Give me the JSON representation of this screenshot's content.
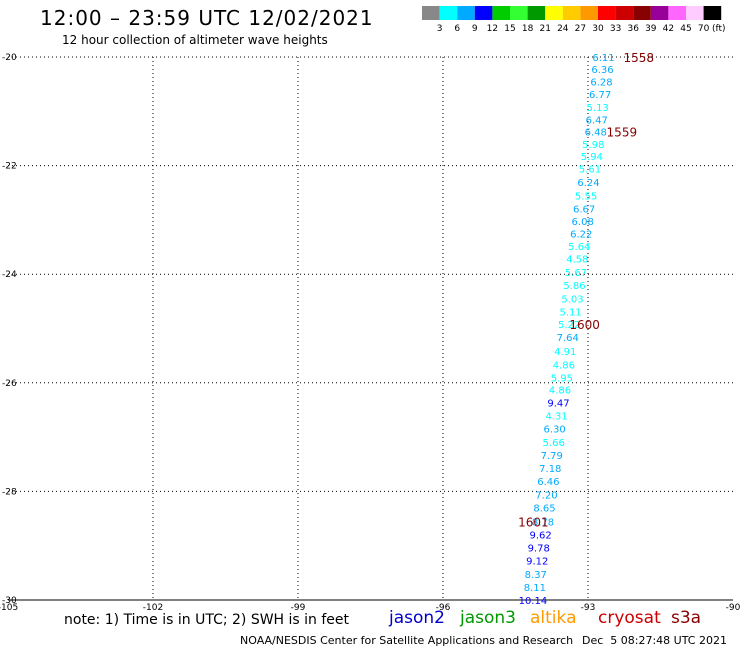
{
  "header": {
    "title": "12:00 – 23:59 UTC 12/02/2021",
    "subtitle": "12 hour collection of altimeter wave heights"
  },
  "footer": {
    "note": "note: 1) Time is in UTC; 2) SWH is in feet",
    "credit": "NOAA/NESDIS Center for Satellite Applications and Research",
    "timestamp": "Dec  5 08:27:48 UTC 2021",
    "satellites": [
      {
        "name": "jason2",
        "color": "#0000cc"
      },
      {
        "name": "jason3",
        "color": "#009900"
      },
      {
        "name": "altika",
        "color": "#ff9900"
      },
      {
        "name": "cryosat",
        "color": "#cc0000"
      },
      {
        "name": "s3a",
        "color": "#880000"
      }
    ]
  },
  "legend": {
    "bins": [
      {
        "label": "3",
        "color": "#888888"
      },
      {
        "label": "6",
        "color": "#00ffff"
      },
      {
        "label": "9",
        "color": "#00aaff"
      },
      {
        "label": "12",
        "color": "#0000ff"
      },
      {
        "label": "15",
        "color": "#00cc00"
      },
      {
        "label": "18",
        "color": "#33ff33"
      },
      {
        "label": "21",
        "color": "#009900"
      },
      {
        "label": "24",
        "color": "#ffff00"
      },
      {
        "label": "27",
        "color": "#ffcc00"
      },
      {
        "label": "30",
        "color": "#ff9900"
      },
      {
        "label": "33",
        "color": "#ff0000"
      },
      {
        "label": "36",
        "color": "#cc0000"
      },
      {
        "label": "39",
        "color": "#880000"
      },
      {
        "label": "42",
        "color": "#990099"
      },
      {
        "label": "45",
        "color": "#ff66ff"
      },
      {
        "label": "70",
        "color": "#ffccff"
      },
      {
        "label": "",
        "color": "#000000"
      }
    ],
    "unit": "(ft)"
  },
  "chart_data": {
    "type": "scatter",
    "title": "12:00 – 23:59 UTC 12/02/2021",
    "subtitle": "12 hour collection of altimeter wave heights",
    "xlim": [
      -105,
      -90
    ],
    "ylim": [
      -30,
      -20
    ],
    "xticks": [
      -105,
      -102,
      -99,
      -96,
      -93,
      -90
    ],
    "yticks": [
      -20,
      -22,
      -24,
      -26,
      -28,
      -30
    ],
    "xtick_labels": [
      "-105",
      "-102",
      "-99",
      "-96",
      "-93",
      "-90"
    ],
    "ytick_labels": [
      "-20",
      "-22",
      "-24",
      "-26",
      "-28",
      "-30"
    ],
    "grid": true,
    "points": [
      {
        "lon": -92.68,
        "lat": -20.0,
        "swh": "6.11",
        "color": "#00aaff"
      },
      {
        "lon": -92.7,
        "lat": -20.22,
        "swh": "6.36",
        "color": "#00aaff"
      },
      {
        "lon": -92.72,
        "lat": -20.45,
        "swh": "6.28",
        "color": "#00aaff"
      },
      {
        "lon": -92.75,
        "lat": -20.68,
        "swh": "6.77",
        "color": "#00aaff"
      },
      {
        "lon": -92.8,
        "lat": -20.92,
        "swh": "5.13",
        "color": "#00ffff"
      },
      {
        "lon": -92.82,
        "lat": -21.15,
        "swh": "6.47",
        "color": "#00aaff"
      },
      {
        "lon": -92.84,
        "lat": -21.37,
        "swh": "6.48",
        "color": "#00aaff"
      },
      {
        "lon": -92.89,
        "lat": -21.6,
        "swh": "5.98",
        "color": "#00ffff"
      },
      {
        "lon": -92.92,
        "lat": -21.82,
        "swh": "5.94",
        "color": "#00ffff"
      },
      {
        "lon": -92.96,
        "lat": -22.05,
        "swh": "5.61",
        "color": "#00ffff"
      },
      {
        "lon": -92.99,
        "lat": -22.3,
        "swh": "6.24",
        "color": "#00aaff"
      },
      {
        "lon": -93.04,
        "lat": -22.55,
        "swh": "5.55",
        "color": "#00ffff"
      },
      {
        "lon": -93.08,
        "lat": -22.79,
        "swh": "6.67",
        "color": "#00aaff"
      },
      {
        "lon": -93.11,
        "lat": -23.02,
        "swh": "6.08",
        "color": "#00aaff"
      },
      {
        "lon": -93.14,
        "lat": -23.25,
        "swh": "6.22",
        "color": "#00aaff"
      },
      {
        "lon": -93.18,
        "lat": -23.48,
        "swh": "5.64",
        "color": "#00ffff"
      },
      {
        "lon": -93.22,
        "lat": -23.71,
        "swh": "4.58",
        "color": "#00ffff"
      },
      {
        "lon": -93.25,
        "lat": -23.96,
        "swh": "5.67",
        "color": "#00ffff"
      },
      {
        "lon": -93.28,
        "lat": -24.2,
        "swh": "5.86",
        "color": "#00ffff"
      },
      {
        "lon": -93.32,
        "lat": -24.45,
        "swh": "5.03",
        "color": "#00ffff"
      },
      {
        "lon": -93.36,
        "lat": -24.69,
        "swh": "5.11",
        "color": "#00ffff"
      },
      {
        "lon": -93.39,
        "lat": -24.92,
        "swh": "5.22",
        "color": "#00ffff"
      },
      {
        "lon": -93.42,
        "lat": -25.16,
        "swh": "7.64",
        "color": "#00aaff"
      },
      {
        "lon": -93.47,
        "lat": -25.41,
        "swh": "4.91",
        "color": "#00ffff"
      },
      {
        "lon": -93.5,
        "lat": -25.66,
        "swh": "4.86",
        "color": "#00ffff"
      },
      {
        "lon": -93.54,
        "lat": -25.9,
        "swh": "5.95",
        "color": "#00ffff"
      },
      {
        "lon": -93.58,
        "lat": -26.12,
        "swh": "4.86",
        "color": "#00ffff"
      },
      {
        "lon": -93.61,
        "lat": -26.36,
        "swh": "9.47",
        "color": "#0000ff"
      },
      {
        "lon": -93.65,
        "lat": -26.6,
        "swh": "4.31",
        "color": "#00ffff"
      },
      {
        "lon": -93.69,
        "lat": -26.84,
        "swh": "6.30",
        "color": "#00aaff"
      },
      {
        "lon": -93.71,
        "lat": -27.09,
        "swh": "5.66",
        "color": "#00ffff"
      },
      {
        "lon": -93.75,
        "lat": -27.33,
        "swh": "7.79",
        "color": "#00aaff"
      },
      {
        "lon": -93.78,
        "lat": -27.57,
        "swh": "7.18",
        "color": "#00aaff"
      },
      {
        "lon": -93.82,
        "lat": -27.81,
        "swh": "6.46",
        "color": "#00aaff"
      },
      {
        "lon": -93.86,
        "lat": -28.06,
        "swh": "7.20",
        "color": "#00aaff"
      },
      {
        "lon": -93.9,
        "lat": -28.3,
        "swh": "8.65",
        "color": "#00aaff"
      },
      {
        "lon": -93.93,
        "lat": -28.55,
        "swh": "8.78",
        "color": "#00aaff"
      },
      {
        "lon": -93.98,
        "lat": -28.79,
        "swh": "9.62",
        "color": "#0000ff"
      },
      {
        "lon": -94.02,
        "lat": -29.03,
        "swh": "9.78",
        "color": "#0000ff"
      },
      {
        "lon": -94.05,
        "lat": -29.27,
        "swh": "9.12",
        "color": "#0000ff"
      },
      {
        "lon": -94.08,
        "lat": -29.52,
        "swh": "8.37",
        "color": "#00aaff"
      },
      {
        "lon": -94.1,
        "lat": -29.76,
        "swh": "8.11",
        "color": "#00aaff"
      },
      {
        "lon": -94.14,
        "lat": -30.0,
        "swh": "10.14",
        "color": "#0000ff"
      }
    ],
    "time_labels": [
      {
        "text": "1558",
        "lon": -91.95,
        "lat": -20.0,
        "color": "#880000"
      },
      {
        "text": "1559",
        "lon": -92.3,
        "lat": -21.37,
        "color": "#880000"
      },
      {
        "text": "1600",
        "lon": -93.07,
        "lat": -24.92,
        "color": "#880000"
      },
      {
        "text": "1601",
        "lon": -94.13,
        "lat": -28.55,
        "color": "#880000"
      }
    ]
  }
}
